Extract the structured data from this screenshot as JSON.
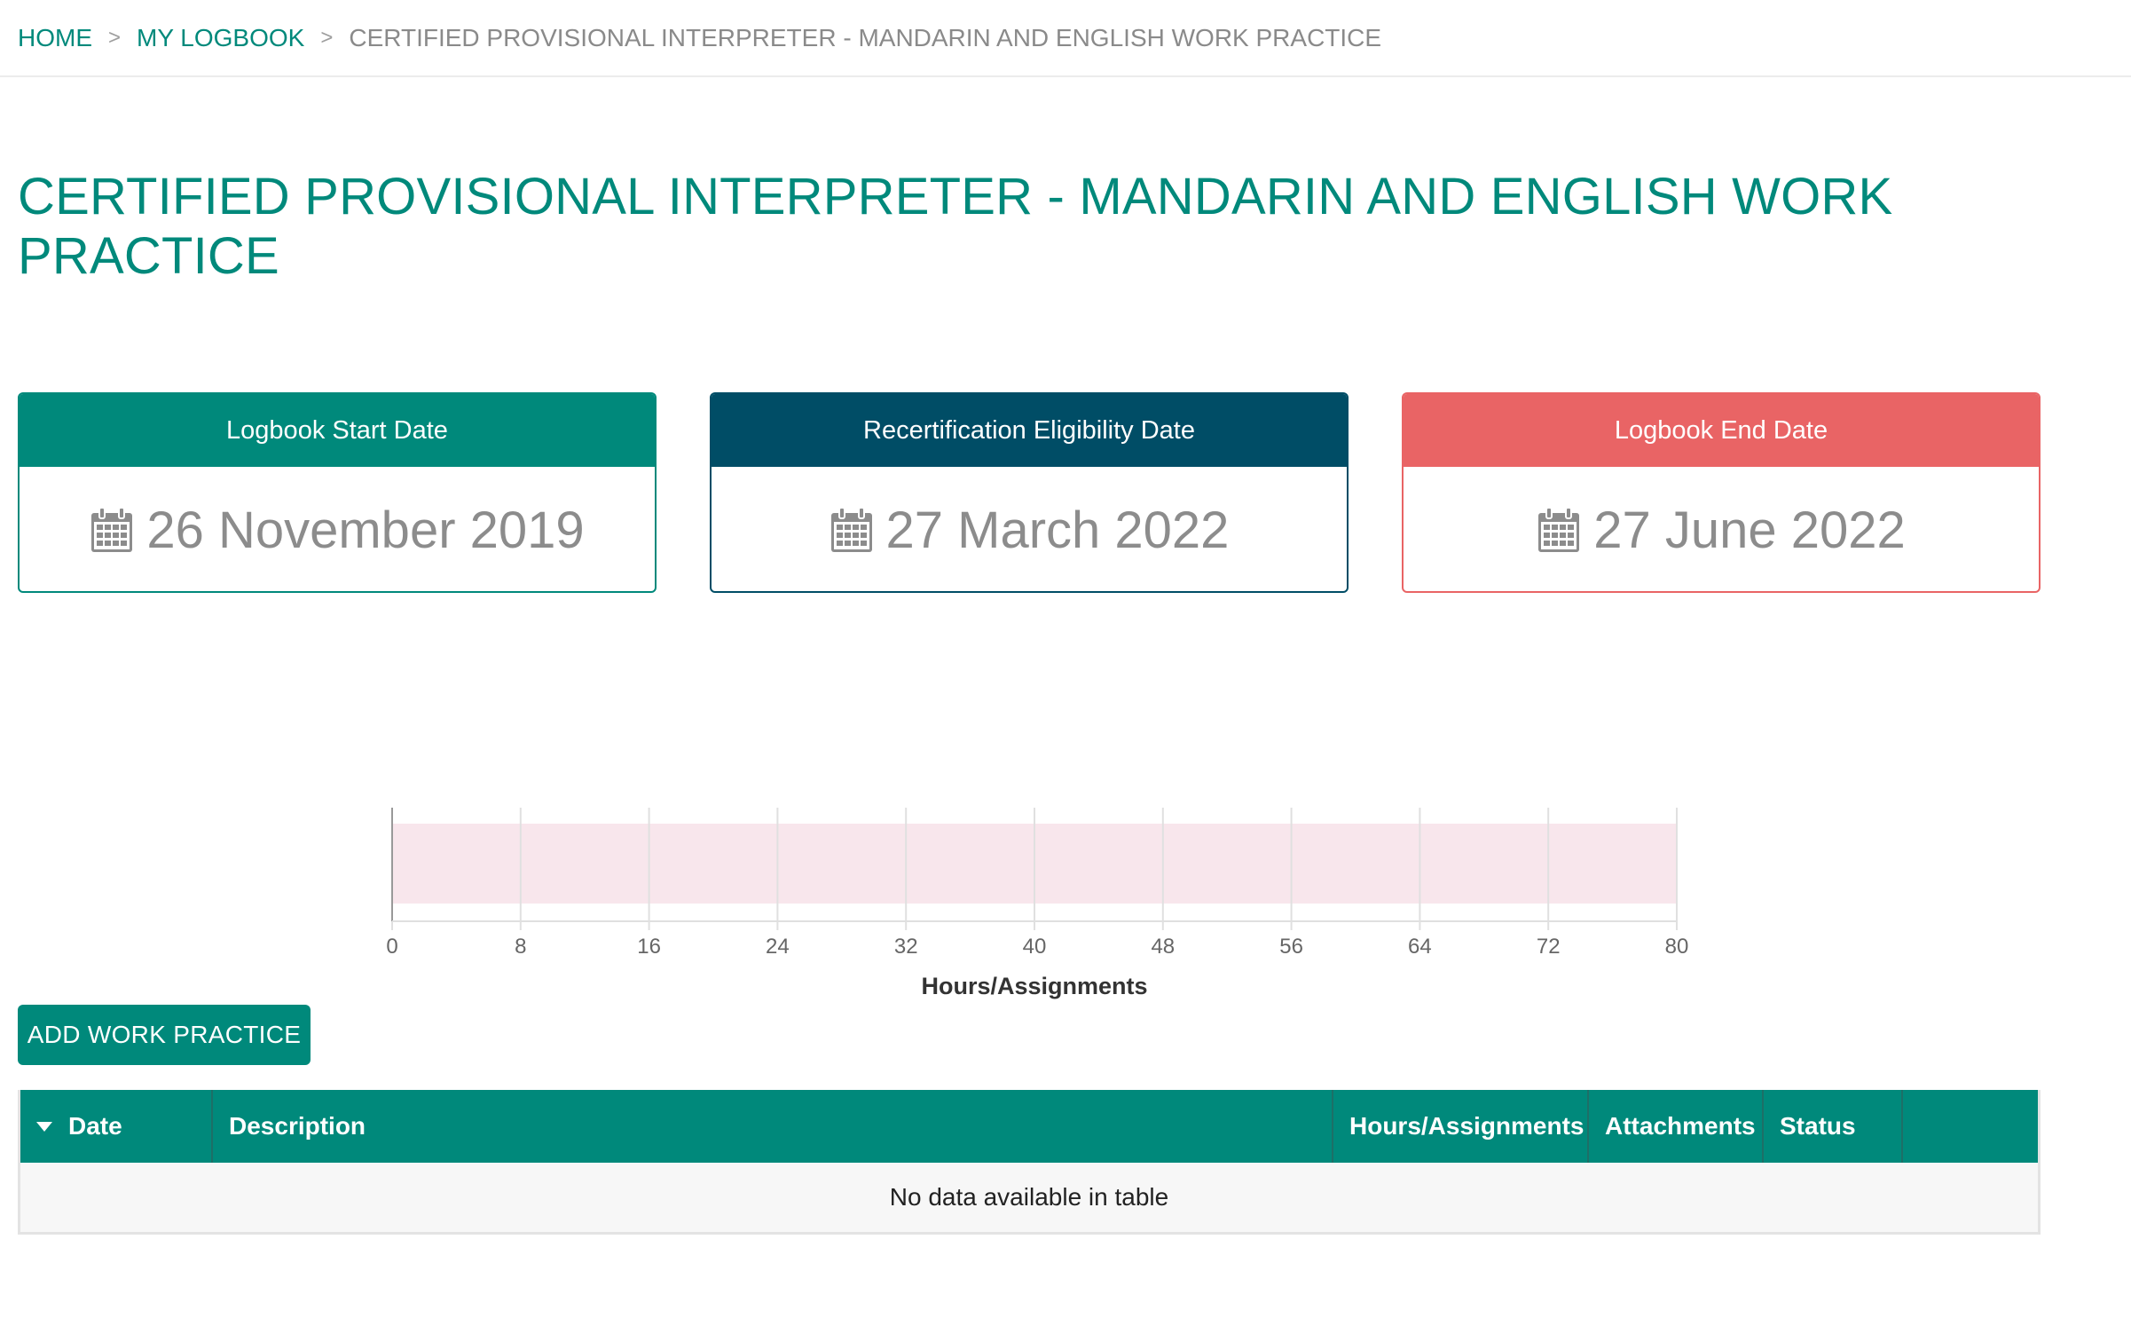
{
  "breadcrumb": {
    "home": "HOME",
    "logbook": "MY LOGBOOK",
    "separator": ">",
    "current": "CERTIFIED PROVISIONAL INTERPRETER - MANDARIN AND ENGLISH WORK PRACTICE"
  },
  "page_title": "CERTIFIED PROVISIONAL INTERPRETER - MANDARIN AND ENGLISH WORK PRACTICE",
  "cards": {
    "start": {
      "label": "Logbook Start Date",
      "value": "26 November 2019",
      "icon": "calendar-icon",
      "color": "#00897b"
    },
    "recert": {
      "label": "Recertification Eligibility Date",
      "value": "27 March 2022",
      "icon": "calendar-icon",
      "color": "#004d66"
    },
    "end": {
      "label": "Logbook End Date",
      "value": "27 June 2022",
      "icon": "calendar-icon",
      "color": "#e96465"
    }
  },
  "chart_data": {
    "type": "bar",
    "orientation": "horizontal",
    "categories": [
      ""
    ],
    "values": [
      0
    ],
    "target": 80,
    "xlim": [
      0,
      80
    ],
    "xticks": [
      0,
      8,
      16,
      24,
      32,
      40,
      48,
      56,
      64,
      72,
      80
    ],
    "xlabel": "Hours/Assignments",
    "grid": true,
    "band_color": "#f8e6ec"
  },
  "add_button": "ADD WORK PRACTICE",
  "table": {
    "columns": [
      "Date",
      "Description",
      "Hours/Assignments",
      "Attachments",
      "Status",
      ""
    ],
    "empty_message": "No data available in table"
  }
}
